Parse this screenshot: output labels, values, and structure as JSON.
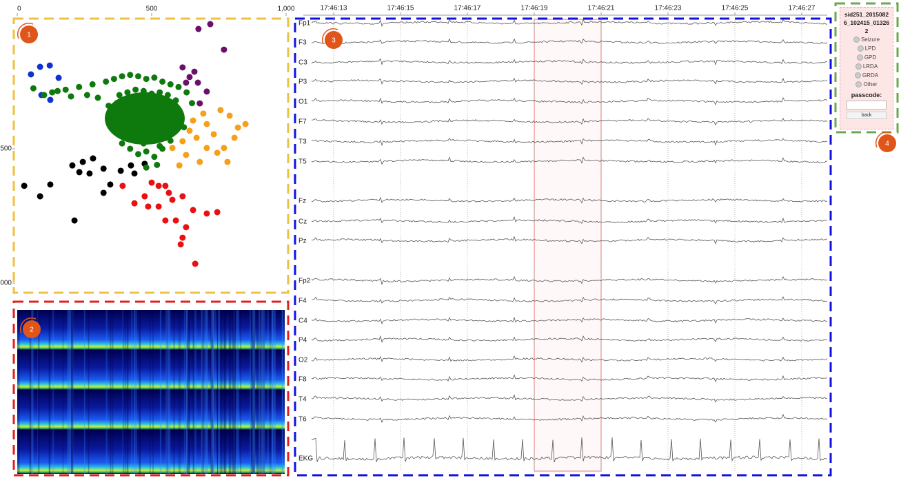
{
  "scatter": {
    "xticks": [
      0,
      500,
      {
        "value": 1000,
        "label": "1,000"
      }
    ],
    "xlim": [
      0,
      1000
    ],
    "yticks": [
      500,
      {
        "value": 1000,
        "label": "000"
      }
    ],
    "ylim": [
      0,
      1000
    ],
    "clusters": [
      {
        "color": "#1030d0",
        "x": [
          51,
          85,
          121,
          90,
          154,
          123
        ],
        "y": [
          223,
          195,
          190,
          300,
          236,
          318
        ]
      },
      {
        "color": "#6a0f6a",
        "x": [
          674,
          718,
          769,
          659,
          672,
          628,
          705,
          615,
          641,
          679
        ],
        "y": [
          54,
          36,
          131,
          213,
          254,
          254,
          287,
          197,
          233,
          331
        ]
      },
      {
        "color": "#f5a01a",
        "x": [
          756,
          790,
          849,
          705,
          731,
          667,
          808,
          769,
          705,
          628,
          603,
          679,
          744,
          654,
          692,
          821,
          577,
          615,
          782,
          641
        ],
        "y": [
          356,
          377,
          408,
          408,
          446,
          459,
          459,
          497,
          497,
          523,
          562,
          549,
          515,
          395,
          369,
          421,
          497,
          472,
          549,
          433
        ]
      },
      {
        "color": "#000000",
        "x": [
          26,
          85,
          123,
          213,
          205,
          244,
          282,
          321,
          385,
          423,
          269,
          346,
          321,
          231,
          436,
          474
        ],
        "y": [
          638,
          677,
          633,
          767,
          562,
          549,
          536,
          574,
          582,
          562,
          592,
          633,
          664,
          587,
          592,
          556
        ]
      },
      {
        "color": "#e81010",
        "x": [
          392,
          436,
          474,
          526,
          551,
          577,
          615,
          654,
          705,
          744,
          615,
          608,
          662,
          564,
          526,
          500,
          590,
          628,
          551,
          487
        ],
        "y": [
          638,
          703,
          677,
          715,
          767,
          690,
          677,
          728,
          741,
          736,
          831,
          856,
          928,
          664,
          638,
          626,
          767,
          792,
          638,
          715
        ]
      },
      {
        "color": "#0e7a0e",
        "x": [
          60,
          130,
          180,
          230,
          280,
          330,
          360,
          390,
          420,
          450,
          480,
          510,
          540,
          570,
          600,
          630,
          650,
          380,
          410,
          440,
          470,
          500,
          530,
          560,
          590,
          340,
          370,
          400,
          430,
          460,
          490,
          520,
          550,
          580,
          610,
          350,
          380,
          410,
          440,
          470,
          500,
          530,
          560,
          590,
          400,
          430,
          460,
          490,
          520,
          550,
          440,
          470,
          500,
          530,
          480,
          450,
          420,
          390,
          360,
          510,
          540,
          570,
          620,
          300,
          260,
          200,
          150,
          100,
          520,
          480
        ],
        "y": [
          275,
          290,
          280,
          270,
          260,
          250,
          240,
          230,
          225,
          230,
          240,
          235,
          250,
          260,
          270,
          290,
          330,
          300,
          290,
          280,
          285,
          295,
          290,
          300,
          320,
          340,
          330,
          320,
          340,
          330,
          350,
          345,
          335,
          360,
          380,
          390,
          380,
          370,
          395,
          400,
          385,
          390,
          400,
          420,
          430,
          440,
          425,
          450,
          440,
          460,
          470,
          480,
          465,
          490,
          510,
          520,
          500,
          480,
          420,
          530,
          500,
          470,
          420,
          310,
          300,
          305,
          285,
          300,
          560,
          570
        ]
      }
    ]
  },
  "badges": [
    "1",
    "2",
    "3",
    "4"
  ],
  "eeg": {
    "times": [
      "17:46:13",
      "17:46:15",
      "17:46:17",
      "17:46:19",
      "17:46:21",
      "17:46:23",
      "17:46:25",
      "17:46:27"
    ],
    "channels": [
      "Fp1",
      "F3",
      "C3",
      "P3",
      "O1",
      "F7",
      "T3",
      "T5",
      "Fz",
      "Cz",
      "Pz",
      "Fp2",
      "F4",
      "C4",
      "P4",
      "O2",
      "F8",
      "T4",
      "T6",
      "EKG"
    ]
  },
  "panel": {
    "title": "sid251_20150826_102415_013262",
    "options": [
      "Seizure",
      "LPD",
      "GPD",
      "LRDA",
      "GRDA",
      "Other"
    ],
    "passcode_label": "passcode:",
    "back": "back"
  }
}
